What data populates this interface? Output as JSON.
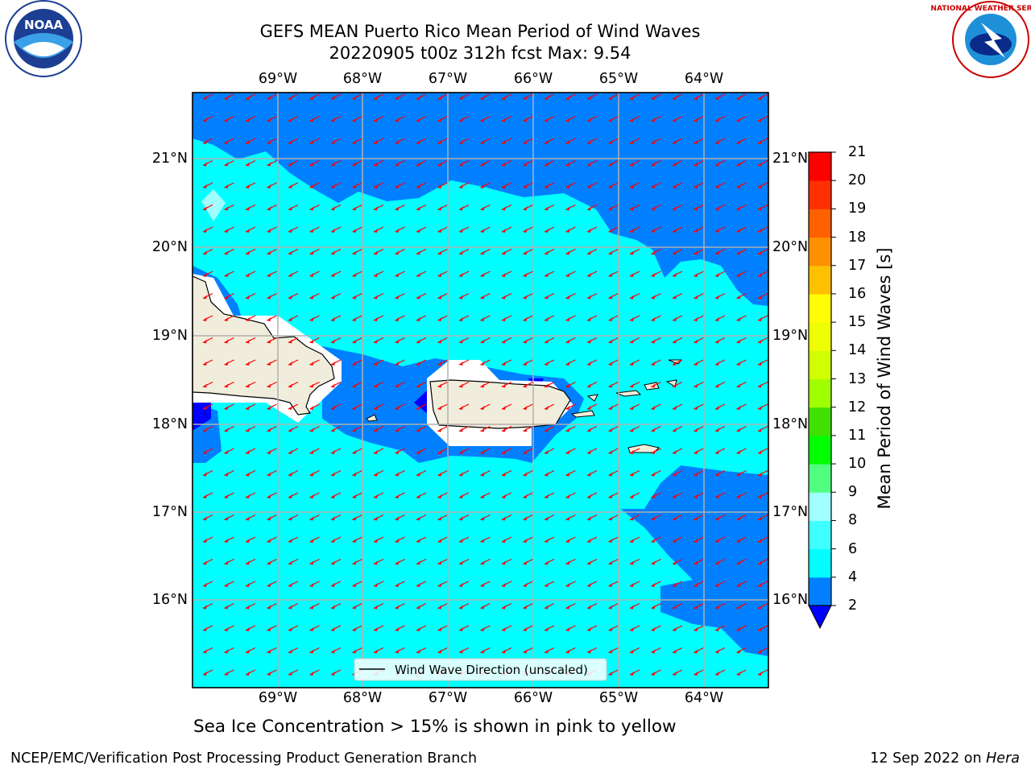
{
  "header": {
    "title_line1": "GEFS MEAN Puerto Rico Mean Period of Wind Waves",
    "title_line2": "20220905 t00z 312h fcst   Max: 9.54"
  },
  "logos": {
    "noaa_text": "NOAA",
    "noaa_ring_text": "NATIONAL OCEANIC AND ATMOSPHERIC ADMINISTRATION · U.S. DEPARTMENT OF COMMERCE",
    "nws_ring_text": "NATIONAL WEATHER SERVICE"
  },
  "map": {
    "lon_labels": [
      "69°W",
      "68°W",
      "67°W",
      "66°W",
      "65°W",
      "64°W"
    ],
    "lat_labels": [
      "21°N",
      "20°N",
      "19°N",
      "18°N",
      "17°N",
      "16°N"
    ],
    "legend_label": "Wind Wave Direction (unscaled)",
    "colors": {
      "band_2_4": "#0080ff",
      "band_4_6": "#00ffff",
      "land": "#f0eddc",
      "arrow": "#ff0000",
      "grid": "#b0b0b0"
    }
  },
  "colorbar": {
    "label": "Mean Period of Wind Waves [s]",
    "ticks": [
      "2",
      "4",
      "6",
      "8",
      "9",
      "10",
      "11",
      "12",
      "13",
      "14",
      "15",
      "16",
      "17",
      "18",
      "19",
      "20",
      "21"
    ],
    "colors": [
      "#0000ff",
      "#0080ff",
      "#00ffff",
      "#40ffff",
      "#a0ffff",
      "#50ff80",
      "#00ff00",
      "#40e000",
      "#a0ff00",
      "#d0ff00",
      "#f0ff00",
      "#ffff00",
      "#ffc000",
      "#ff9000",
      "#ff6000",
      "#ff3000",
      "#ff0000"
    ]
  },
  "subtitle": "Sea Ice Concentration > 15% is shown in pink to yellow",
  "footer": {
    "left": "NCEP/EMC/Verification Post Processing Product Generation Branch",
    "right_date": "12 Sep 2022 on ",
    "right_host": "Hera"
  }
}
